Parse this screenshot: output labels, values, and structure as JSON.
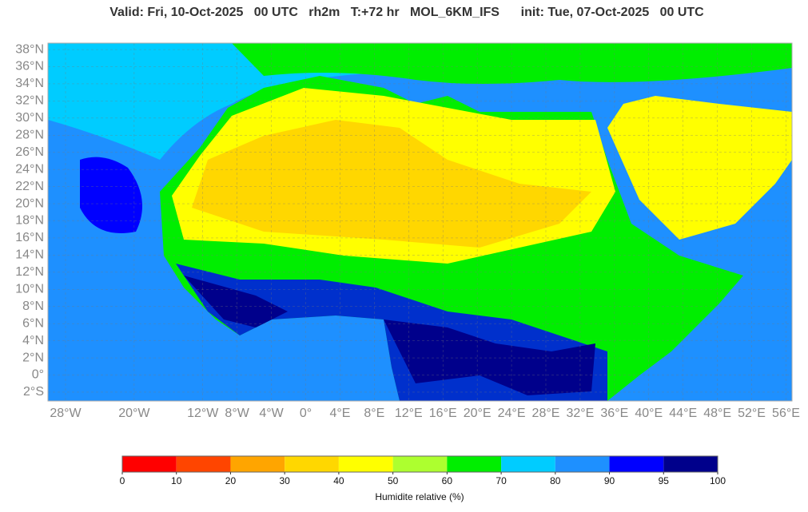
{
  "header": {
    "title": "Valid: Fri, 10-Oct-2025   00 UTC   rh2m   T:+72 hr   MOL_6KM_IFS      init: Tue, 07-Oct-2025   00 UTC"
  },
  "map": {
    "lonlim": [
      -30.05,
      56.7
    ],
    "latlim": [
      -3.03,
      38.75
    ],
    "lat_ticks": [
      {
        "value": 38,
        "label": "38°N"
      },
      {
        "value": 36,
        "label": "36°N"
      },
      {
        "value": 34,
        "label": "34°N"
      },
      {
        "value": 32,
        "label": "32°N"
      },
      {
        "value": 30,
        "label": "30°N"
      },
      {
        "value": 28,
        "label": "28°N"
      },
      {
        "value": 26,
        "label": "26°N"
      },
      {
        "value": 24,
        "label": "24°N"
      },
      {
        "value": 22,
        "label": "22°N"
      },
      {
        "value": 20,
        "label": "20°N"
      },
      {
        "value": 18,
        "label": "18°N"
      },
      {
        "value": 16,
        "label": "16°N"
      },
      {
        "value": 14,
        "label": "14°N"
      },
      {
        "value": 12,
        "label": "12°N"
      },
      {
        "value": 10,
        "label": "10°N"
      },
      {
        "value": 8,
        "label": "8°N"
      },
      {
        "value": 6,
        "label": "6°N"
      },
      {
        "value": 4,
        "label": "4°N"
      },
      {
        "value": 2,
        "label": "2°N"
      },
      {
        "value": 0,
        "label": "0°"
      },
      {
        "value": -2,
        "label": "2°S"
      }
    ],
    "lon_ticks": [
      {
        "value": -28,
        "label": "28°W"
      },
      {
        "value": -20,
        "label": "20°W"
      },
      {
        "value": -12,
        "label": "12°W"
      },
      {
        "value": -8,
        "label": "8°W"
      },
      {
        "value": -4,
        "label": "4°W"
      },
      {
        "value": 0,
        "label": "0°"
      },
      {
        "value": 4,
        "label": "4°E"
      },
      {
        "value": 8,
        "label": "8°E"
      },
      {
        "value": 12,
        "label": "12°E"
      },
      {
        "value": 16,
        "label": "16°E"
      },
      {
        "value": 20,
        "label": "20°E"
      },
      {
        "value": 24,
        "label": "24°E"
      },
      {
        "value": 28,
        "label": "28°E"
      },
      {
        "value": 32,
        "label": "32°E"
      },
      {
        "value": 36,
        "label": "36°E"
      },
      {
        "value": 40,
        "label": "40°E"
      },
      {
        "value": 44,
        "label": "44°E"
      },
      {
        "value": 48,
        "label": "48°E"
      },
      {
        "value": 52,
        "label": "52°E"
      },
      {
        "value": 56,
        "label": "56°E"
      }
    ]
  },
  "colorbar": {
    "ticks": [
      0,
      10,
      20,
      30,
      40,
      50,
      60,
      70,
      80,
      90,
      95,
      100
    ],
    "colors": [
      "#ff0000",
      "#ff4500",
      "#ffa500",
      "#ffd700",
      "#ffff00",
      "#adff2f",
      "#00ee00",
      "#00ccff",
      "#1e90ff",
      "#0000ff",
      "#00008b"
    ],
    "label": "Humidite relative (%)"
  }
}
